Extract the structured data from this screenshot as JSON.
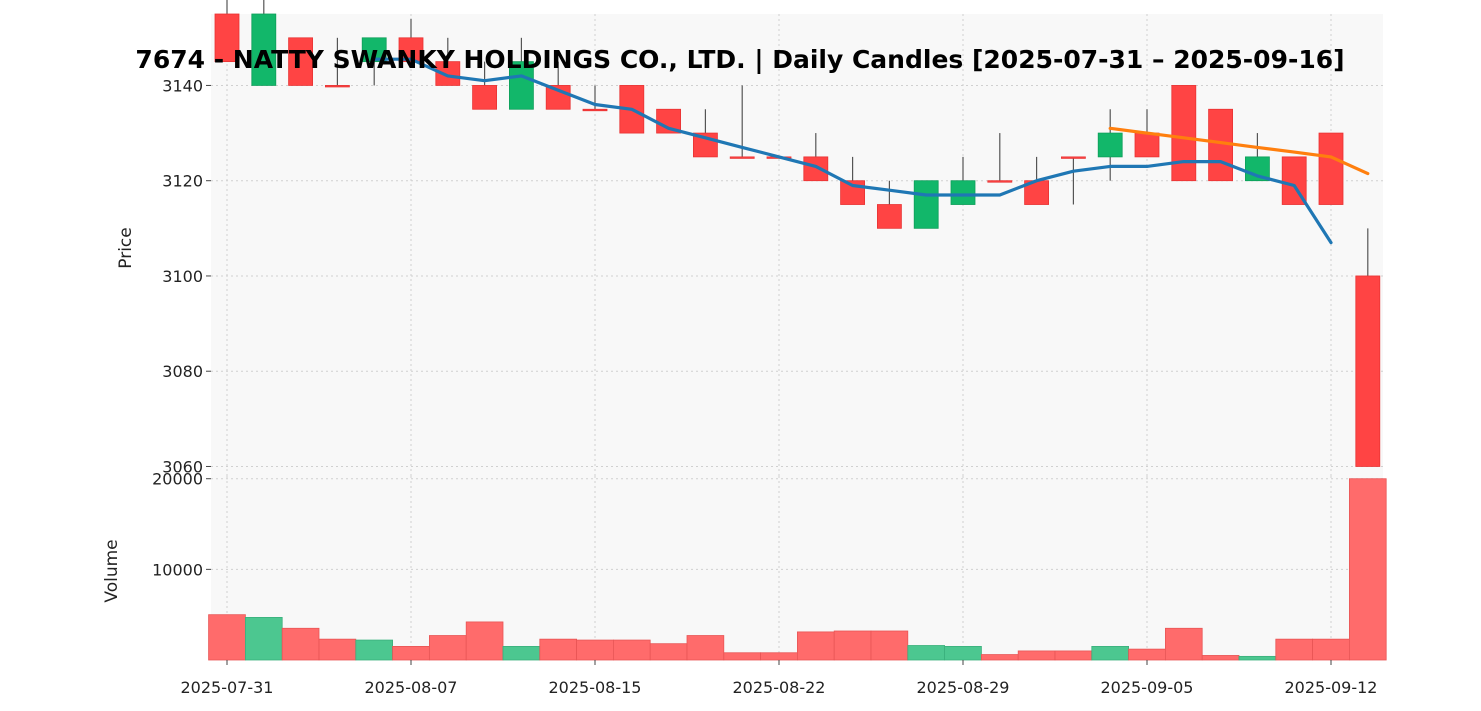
{
  "chart_data": {
    "type": "candlestick",
    "title": "7674 - NATTY SWANKY HOLDINGS CO., LTD. | Daily Candles [2025-07-31 – 2025-09-16]",
    "price_axis": {
      "label": "Price",
      "ylim": [
        3058,
        3155
      ],
      "ticks": [
        3060,
        3080,
        3100,
        3120,
        3140
      ]
    },
    "volume_axis": {
      "label": "Volume",
      "ylim": [
        0,
        20300
      ],
      "ticks": [
        10000,
        20000
      ]
    },
    "x_ticks": [
      {
        "label": "2025-07-31",
        "index": 0
      },
      {
        "label": "2025-08-07",
        "index": 5
      },
      {
        "label": "2025-08-15",
        "index": 10
      },
      {
        "label": "2025-08-22",
        "index": 15
      },
      {
        "label": "2025-08-29",
        "index": 20
      },
      {
        "label": "2025-09-05",
        "index": 25
      },
      {
        "label": "2025-09-12",
        "index": 30
      }
    ],
    "grid": true,
    "colors": {
      "up": "#12b76a",
      "down": "#ff4444",
      "up_volume": "#4cc790",
      "down_volume": "#ff6b6b",
      "ma_short": "#1f77b4",
      "ma_long": "#ff7f0e",
      "wick": "#555555",
      "panel_bg": "#f8f8f8",
      "grid": "#d0d0d0"
    },
    "candles": [
      {
        "date": "2025-07-31",
        "open": 3155,
        "high": 3160,
        "low": 3145,
        "close": 3145,
        "volume": 5000
      },
      {
        "date": "2025-08-01",
        "open": 3140,
        "high": 3160,
        "low": 3140,
        "close": 3155,
        "volume": 4700
      },
      {
        "date": "2025-08-04",
        "open": 3150,
        "high": 3150,
        "low": 3140,
        "close": 3140,
        "volume": 3500
      },
      {
        "date": "2025-08-05",
        "open": 3140,
        "high": 3150,
        "low": 3140,
        "close": 3140,
        "volume": 2300
      },
      {
        "date": "2025-08-06",
        "open": 3145,
        "high": 3150,
        "low": 3140,
        "close": 3150,
        "volume": 2200
      },
      {
        "date": "2025-08-07",
        "open": 3150,
        "high": 3154,
        "low": 3145,
        "close": 3145,
        "volume": 1500
      },
      {
        "date": "2025-08-08",
        "open": 3145,
        "high": 3150,
        "low": 3140,
        "close": 3140,
        "volume": 2700
      },
      {
        "date": "2025-08-12",
        "open": 3140,
        "high": 3145,
        "low": 3135,
        "close": 3135,
        "volume": 4200
      },
      {
        "date": "2025-08-13",
        "open": 3135,
        "high": 3150,
        "low": 3135,
        "close": 3145,
        "volume": 1500
      },
      {
        "date": "2025-08-14",
        "open": 3140,
        "high": 3145,
        "low": 3135,
        "close": 3135,
        "volume": 2300
      },
      {
        "date": "2025-08-15",
        "open": 3135,
        "high": 3140,
        "low": 3135,
        "close": 3135,
        "volume": 2200
      },
      {
        "date": "2025-08-18",
        "open": 3140,
        "high": 3140,
        "low": 3130,
        "close": 3130,
        "volume": 2200
      },
      {
        "date": "2025-08-19",
        "open": 3135,
        "high": 3135,
        "low": 3130,
        "close": 3130,
        "volume": 1800
      },
      {
        "date": "2025-08-20",
        "open": 3130,
        "high": 3135,
        "low": 3125,
        "close": 3125,
        "volume": 2700
      },
      {
        "date": "2025-08-21",
        "open": 3125,
        "high": 3140,
        "low": 3125,
        "close": 3125,
        "volume": 800
      },
      {
        "date": "2025-08-22",
        "open": 3125,
        "high": 3125,
        "low": 3125,
        "close": 3125,
        "volume": 800
      },
      {
        "date": "2025-08-25",
        "open": 3125,
        "high": 3130,
        "low": 3120,
        "close": 3120,
        "volume": 3100
      },
      {
        "date": "2025-08-26",
        "open": 3120,
        "high": 3125,
        "low": 3115,
        "close": 3115,
        "volume": 3200
      },
      {
        "date": "2025-08-27",
        "open": 3115,
        "high": 3120,
        "low": 3110,
        "close": 3110,
        "volume": 3200
      },
      {
        "date": "2025-08-28",
        "open": 3110,
        "high": 3120,
        "low": 3110,
        "close": 3120,
        "volume": 1600
      },
      {
        "date": "2025-08-29",
        "open": 3115,
        "high": 3125,
        "low": 3115,
        "close": 3120,
        "volume": 1500
      },
      {
        "date": "2025-09-01",
        "open": 3120,
        "high": 3130,
        "low": 3120,
        "close": 3120,
        "volume": 600
      },
      {
        "date": "2025-09-02",
        "open": 3120,
        "high": 3125,
        "low": 3115,
        "close": 3115,
        "volume": 1000
      },
      {
        "date": "2025-09-03",
        "open": 3125,
        "high": 3125,
        "low": 3115,
        "close": 3125,
        "volume": 1000
      },
      {
        "date": "2025-09-04",
        "open": 3125,
        "high": 3135,
        "low": 3120,
        "close": 3130,
        "volume": 1500
      },
      {
        "date": "2025-09-05",
        "open": 3130,
        "high": 3135,
        "low": 3125,
        "close": 3125,
        "volume": 1200
      },
      {
        "date": "2025-09-08",
        "open": 3140,
        "high": 3140,
        "low": 3120,
        "close": 3120,
        "volume": 3500
      },
      {
        "date": "2025-09-09",
        "open": 3135,
        "high": 3135,
        "low": 3120,
        "close": 3120,
        "volume": 500
      },
      {
        "date": "2025-09-10",
        "open": 3120,
        "high": 3130,
        "low": 3120,
        "close": 3125,
        "volume": 400
      },
      {
        "date": "2025-09-11",
        "open": 3125,
        "high": 3125,
        "low": 3115,
        "close": 3115,
        "volume": 2300
      },
      {
        "date": "2025-09-12",
        "open": 3130,
        "high": 3130,
        "low": 3115,
        "close": 3115,
        "volume": 2300
      },
      {
        "date": "2025-09-16",
        "open": 3100,
        "high": 3110,
        "low": 3060,
        "close": 3060,
        "volume": 20000
      }
    ],
    "ma_short": [
      {
        "index": 4,
        "value": 3145.5
      },
      {
        "index": 5,
        "value": 3145.5
      },
      {
        "index": 6,
        "value": 3142
      },
      {
        "index": 7,
        "value": 3141
      },
      {
        "index": 8,
        "value": 3142
      },
      {
        "index": 9,
        "value": 3139
      },
      {
        "index": 10,
        "value": 3136
      },
      {
        "index": 11,
        "value": 3135
      },
      {
        "index": 12,
        "value": 3131
      },
      {
        "index": 13,
        "value": 3129
      },
      {
        "index": 14,
        "value": 3127
      },
      {
        "index": 15,
        "value": 3125
      },
      {
        "index": 16,
        "value": 3123
      },
      {
        "index": 17,
        "value": 3119
      },
      {
        "index": 18,
        "value": 3118
      },
      {
        "index": 19,
        "value": 3117
      },
      {
        "index": 20,
        "value": 3117
      },
      {
        "index": 21,
        "value": 3117
      },
      {
        "index": 22,
        "value": 3120
      },
      {
        "index": 23,
        "value": 3122
      },
      {
        "index": 24,
        "value": 3123
      },
      {
        "index": 25,
        "value": 3123
      },
      {
        "index": 26,
        "value": 3124
      },
      {
        "index": 27,
        "value": 3124
      },
      {
        "index": 28,
        "value": 3121
      },
      {
        "index": 29,
        "value": 3119
      },
      {
        "index": 30,
        "value": 3107
      }
    ],
    "ma_long": [
      {
        "index": 24,
        "value": 3131
      },
      {
        "index": 25,
        "value": 3130
      },
      {
        "index": 26,
        "value": 3129
      },
      {
        "index": 27,
        "value": 3128
      },
      {
        "index": 28,
        "value": 3127
      },
      {
        "index": 29,
        "value": 3126
      },
      {
        "index": 30,
        "value": 3125
      },
      {
        "index": 31,
        "value": 3121.5
      }
    ]
  }
}
